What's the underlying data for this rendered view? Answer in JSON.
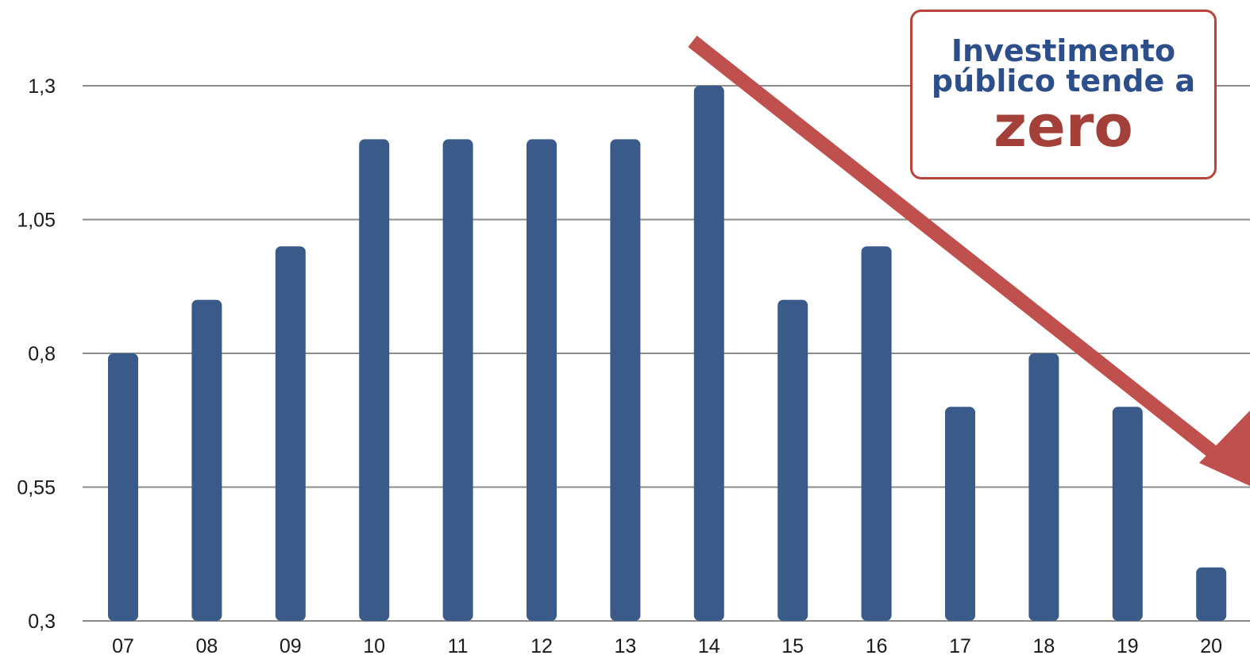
{
  "chart_data": {
    "type": "bar",
    "categories": [
      "07",
      "08",
      "09",
      "10",
      "11",
      "12",
      "13",
      "14",
      "15",
      "16",
      "17",
      "18",
      "19",
      "20"
    ],
    "values": [
      0.8,
      0.9,
      1.0,
      1.2,
      1.2,
      1.2,
      1.2,
      1.3,
      0.9,
      1.0,
      0.7,
      0.8,
      0.7,
      0.4
    ],
    "yticks": [
      "0,3",
      "0,55",
      "0,8",
      "1,05",
      "1,3"
    ],
    "ytick_values": [
      0.3,
      0.55,
      0.8,
      1.05,
      1.3
    ],
    "ylim": [
      0.3,
      1.3
    ],
    "grid": true,
    "title": "",
    "xlabel": "",
    "ylabel": "",
    "bar_color": "#3a5b8a",
    "grid_color": "#8c8c8c"
  },
  "callout": {
    "line1": "Investimento",
    "line2": "público tende a",
    "emphasis": "zero",
    "text_color": "#2c4e8a",
    "emphasis_color": "#a3403a",
    "border_color": "#b8443c"
  },
  "trend_arrow": {
    "color": "#c0504d",
    "direction": "down"
  }
}
